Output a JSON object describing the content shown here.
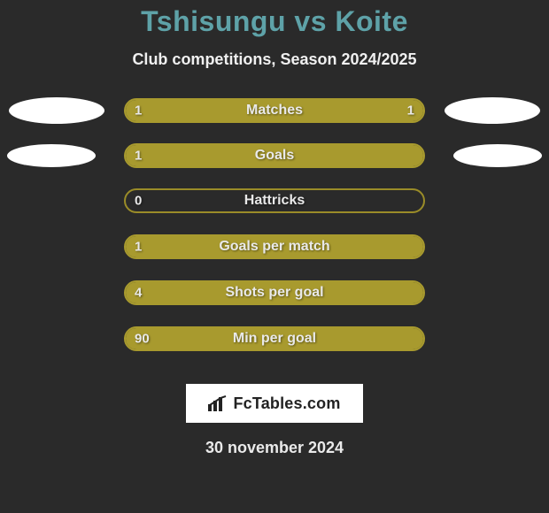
{
  "title": "Tshisungu vs Koite",
  "subtitle": "Club competitions, Season 2024/2025",
  "date": "30 november 2024",
  "logo_text": "FcTables.com",
  "colors": {
    "background": "#2a2a2a",
    "title": "#5ea2a8",
    "text": "#eaeaea",
    "bar_fill": "#a89a2e",
    "bar_border_full": "#a89a2e",
    "bar_border_partial": "#9a8c28",
    "ellipse": "#ffffff",
    "logo_bg": "#ffffff"
  },
  "stats": [
    {
      "label": "Matches",
      "left_val": "1",
      "right_val": "1",
      "left_pct": 50,
      "right_pct": 50,
      "show_right_val": true,
      "ellipses": "both"
    },
    {
      "label": "Goals",
      "left_val": "1",
      "right_val": "",
      "left_pct": 100,
      "right_pct": 0,
      "show_right_val": false,
      "ellipses": "both-indent"
    },
    {
      "label": "Hattricks",
      "left_val": "0",
      "right_val": "",
      "left_pct": 0,
      "right_pct": 0,
      "show_right_val": false,
      "ellipses": "none"
    },
    {
      "label": "Goals per match",
      "left_val": "1",
      "right_val": "",
      "left_pct": 100,
      "right_pct": 0,
      "show_right_val": false,
      "ellipses": "none"
    },
    {
      "label": "Shots per goal",
      "left_val": "4",
      "right_val": "",
      "left_pct": 100,
      "right_pct": 0,
      "show_right_val": false,
      "ellipses": "none"
    },
    {
      "label": "Min per goal",
      "left_val": "90",
      "right_val": "",
      "left_pct": 100,
      "right_pct": 0,
      "show_right_val": false,
      "ellipses": "none"
    }
  ]
}
